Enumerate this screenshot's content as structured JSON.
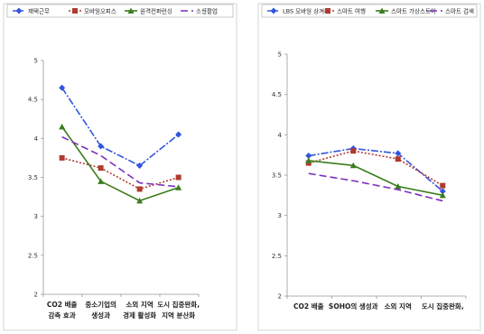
{
  "chart_data": [
    {
      "type": "line",
      "categories": [
        "CO2 배출\n감축 효과",
        "중소기업의\n생성과",
        "소외 지역\n경제 활성화",
        "도시 집중완화,\n지역 분산화"
      ],
      "ylim": [
        2,
        5
      ],
      "yticks": [
        2,
        2.5,
        3,
        3.5,
        4,
        4.5,
        5
      ],
      "grid": false,
      "legend_position": "top",
      "series": [
        {
          "name": "재택근무",
          "values": [
            4.65,
            3.9,
            3.65,
            4.05
          ],
          "color": "#3355dd",
          "dash": "8 2 2 2",
          "marker": "diamond"
        },
        {
          "name": "모바일오피스",
          "values": [
            3.75,
            3.62,
            3.35,
            3.5
          ],
          "color": "#b03a2e",
          "dash": "2 2",
          "marker": "square"
        },
        {
          "name": "원격컨퍼런싱",
          "values": [
            4.15,
            3.45,
            3.2,
            3.37
          ],
          "color": "#3a7d1e",
          "dash": "",
          "marker": "triangle"
        },
        {
          "name": "소셜활업",
          "values": [
            4.02,
            3.78,
            3.43,
            3.38
          ],
          "color": "#7b2fc0",
          "dash": "8 4",
          "marker": "none"
        }
      ]
    },
    {
      "type": "line",
      "categories": [
        "CO2 배출",
        "SOHO의 생성과",
        "소외 지역",
        "도시 집중완화,"
      ],
      "ylim": [
        2,
        5
      ],
      "yticks": [
        2,
        2.5,
        3,
        3.5,
        4,
        4.5,
        5
      ],
      "grid": false,
      "legend_position": "top",
      "series": [
        {
          "name": "LBS 모바일 상거래",
          "values": [
            3.74,
            3.83,
            3.77,
            3.3
          ],
          "color": "#3355dd",
          "dash": "8 2 2 2",
          "marker": "diamond"
        },
        {
          "name": "스마트 여행",
          "values": [
            3.65,
            3.8,
            3.7,
            3.37
          ],
          "color": "#b03a2e",
          "dash": "2 2",
          "marker": "square"
        },
        {
          "name": "스마트 가상스토어",
          "values": [
            3.68,
            3.62,
            3.36,
            3.25
          ],
          "color": "#3a7d1e",
          "dash": "",
          "marker": "triangle"
        },
        {
          "name": "스마트 검색",
          "values": [
            3.52,
            3.43,
            3.32,
            3.18
          ],
          "color": "#7b2fc0",
          "dash": "8 4",
          "marker": "none"
        }
      ]
    }
  ]
}
